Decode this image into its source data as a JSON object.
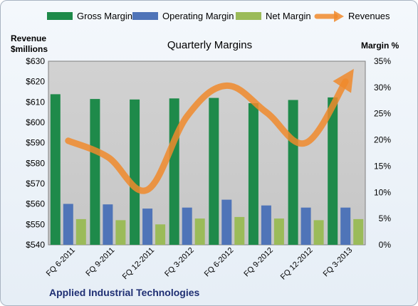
{
  "chart_data": {
    "type": "bar",
    "title": "Quarterly Margins",
    "categories": [
      "FQ 6-2011",
      "FQ 9-2011",
      "FQ 12-2011",
      "FQ 3-2012",
      "FQ 6-2012",
      "FQ 9-2012",
      "FQ 12-2012",
      "FQ 3-2013"
    ],
    "series": [
      {
        "name": "Gross Margin",
        "axis": "right",
        "type": "bar",
        "color": "#1e8a4a",
        "values": [
          28.7,
          27.8,
          27.7,
          27.9,
          28.0,
          27.0,
          27.6,
          28.1
        ]
      },
      {
        "name": "Operating Margin",
        "axis": "right",
        "type": "bar",
        "color": "#4f74b8",
        "values": [
          7.8,
          7.7,
          6.9,
          7.1,
          8.6,
          7.5,
          7.1,
          7.1
        ]
      },
      {
        "name": "Net Margin",
        "axis": "right",
        "type": "bar",
        "color": "#9bbb59",
        "values": [
          4.9,
          4.7,
          3.9,
          5.0,
          5.3,
          5.0,
          4.7,
          4.9
        ]
      },
      {
        "name": "Revenues",
        "axis": "left",
        "type": "line",
        "color": "#f08a2c",
        "values": [
          591,
          583,
          567,
          603,
          618,
          605,
          590,
          620
        ]
      }
    ],
    "y_left": {
      "label_line1": "Revenue",
      "label_line2": "$millions",
      "min": 540,
      "max": 630,
      "step": 10,
      "prefix": "$"
    },
    "y_right": {
      "label": "Margin %",
      "min": 0,
      "max": 35,
      "step": 5,
      "suffix": "%"
    },
    "legend_position": "top",
    "grid": false,
    "annotation": "Applied Industrial Technologies"
  }
}
